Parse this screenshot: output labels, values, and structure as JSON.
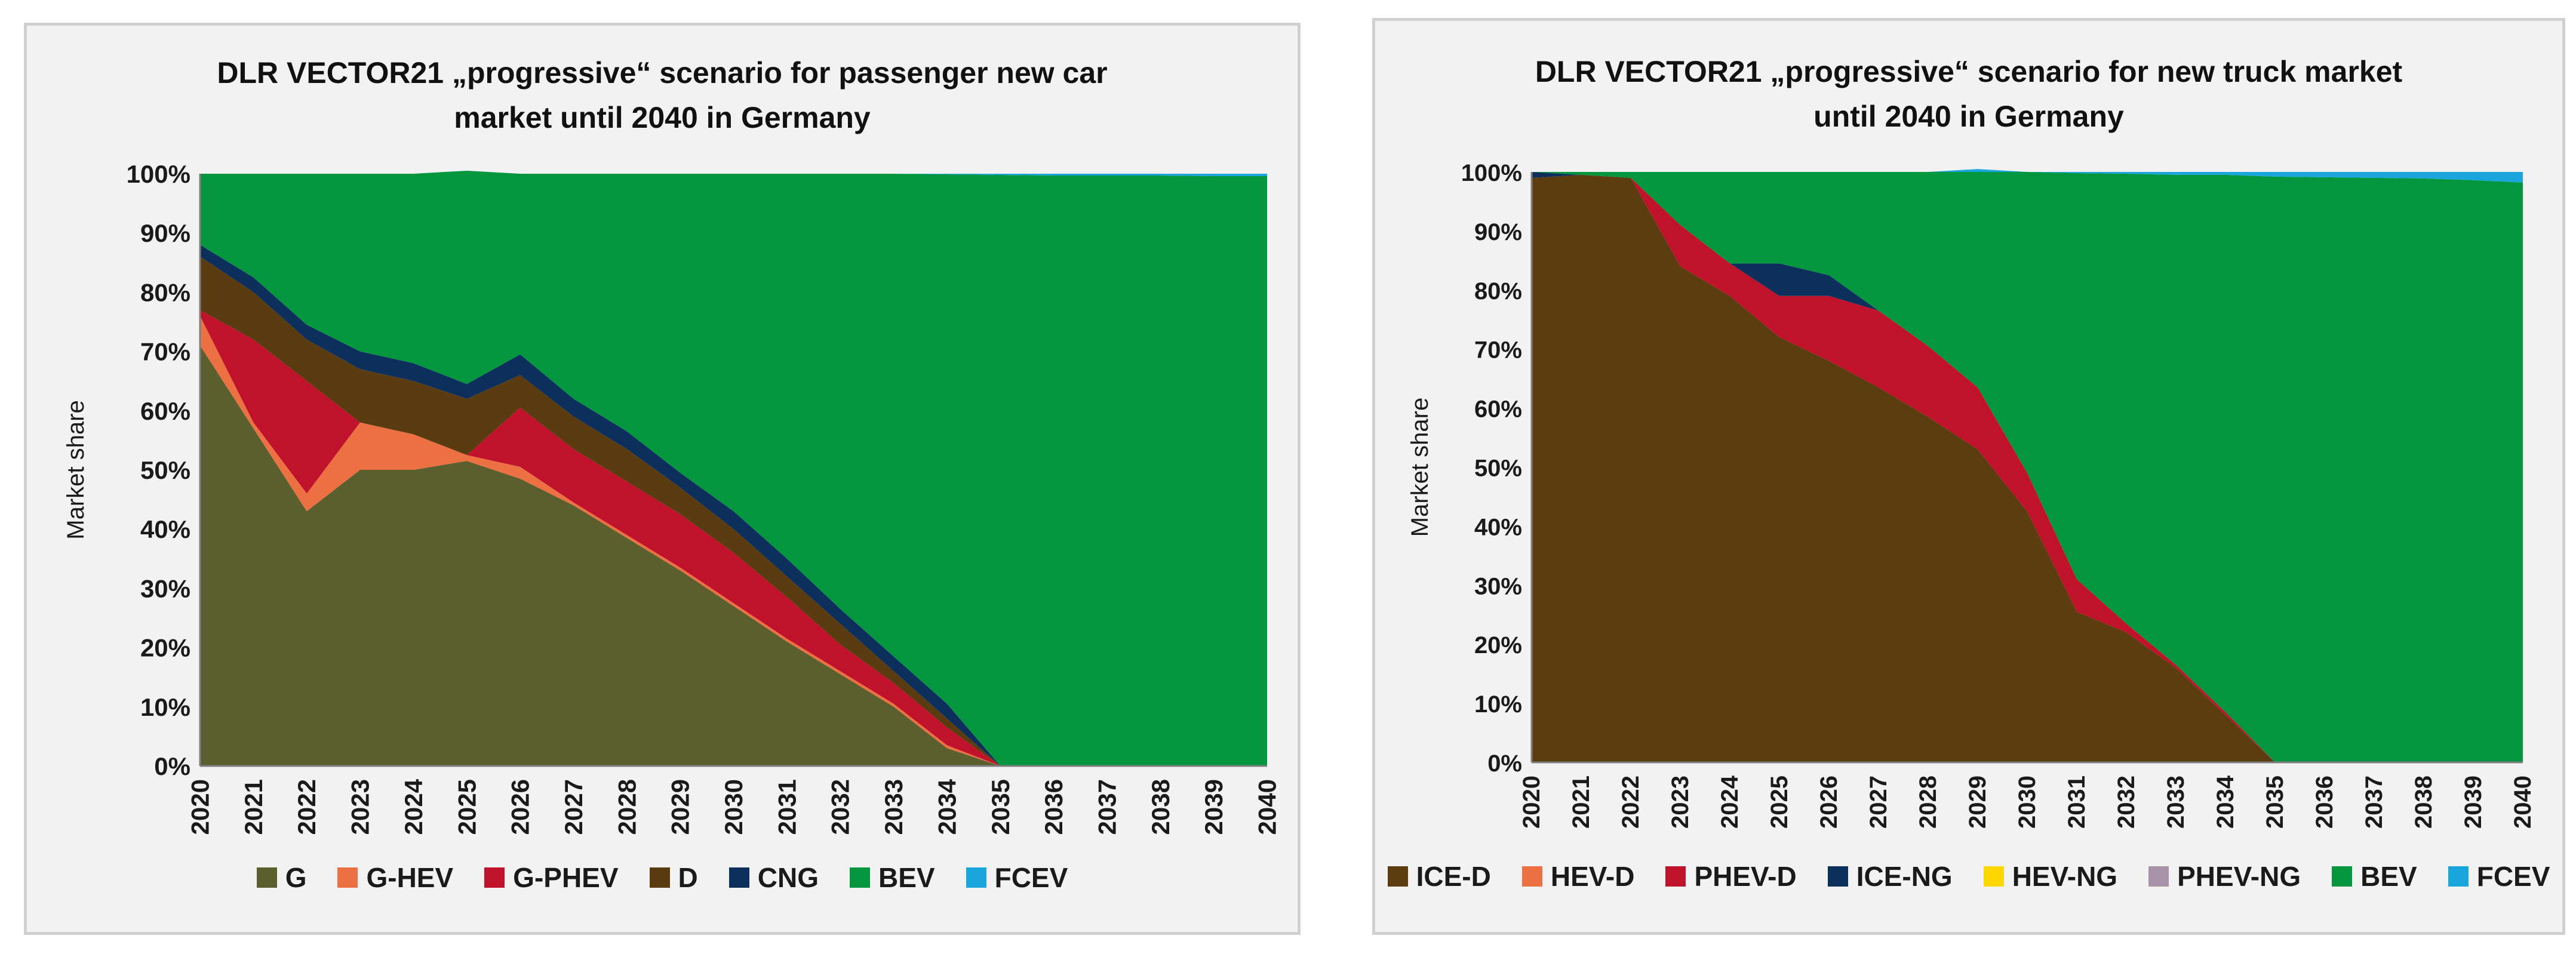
{
  "chart_data": [
    {
      "type": "area",
      "stacked": true,
      "title_lines": [
        "DLR VECTOR21 „progressive“ scenario for passenger new car",
        "market until 2040 in Germany"
      ],
      "xlabel": "",
      "ylabel": "Market share",
      "ylim": [
        0,
        100
      ],
      "y_ticks": [
        "0%",
        "10%",
        "20%",
        "30%",
        "40%",
        "50%",
        "60%",
        "70%",
        "80%",
        "90%",
        "100%"
      ],
      "grid": false,
      "legend_position": "bottom",
      "categories": [
        "2020",
        "2021",
        "2022",
        "2023",
        "2024",
        "2025",
        "2026",
        "2027",
        "2028",
        "2029",
        "2030",
        "2031",
        "2032",
        "2033",
        "2034",
        "2035",
        "2036",
        "2037",
        "2038",
        "2039",
        "2040"
      ],
      "series": [
        {
          "name": "G",
          "color": "#5b5e2d",
          "values": [
            71,
            57,
            43,
            50,
            50,
            51.5,
            48.5,
            44,
            38.5,
            33,
            27,
            21,
            15.5,
            10,
            3,
            0,
            0,
            0,
            0,
            0,
            0
          ]
        },
        {
          "name": "G-HEV",
          "color": "#ed7042",
          "values": [
            5,
            1,
            3,
            8,
            6,
            1,
            2,
            0.5,
            0.5,
            0.5,
            0.5,
            0.5,
            0.5,
            0.5,
            0.5,
            0,
            0,
            0,
            0,
            0,
            0
          ]
        },
        {
          "name": "G-PHEV",
          "color": "#c0122b",
          "values": [
            1,
            14,
            19,
            0,
            0,
            0,
            10,
            9,
            9,
            9,
            8.5,
            7,
            4.5,
            3.5,
            3,
            0,
            0,
            0,
            0,
            0,
            0
          ]
        },
        {
          "name": "D",
          "color": "#5b3c10",
          "values": [
            9,
            8,
            7,
            9,
            9,
            9.5,
            5.5,
            5.5,
            5.5,
            4.5,
            4,
            3.5,
            3.5,
            2,
            1.5,
            0,
            0,
            0,
            0,
            0,
            0
          ]
        },
        {
          "name": "CNG",
          "color": "#0c2f5c",
          "values": [
            2,
            2.5,
            2.5,
            3,
            3,
            2.5,
            3.5,
            3,
            3,
            2.5,
            3,
            3,
            2.5,
            2.5,
            2.5,
            0,
            0,
            0,
            0,
            0,
            0
          ]
        },
        {
          "name": "BEV",
          "color": "#03963f",
          "values": [
            12,
            17.5,
            25.5,
            30,
            32,
            36,
            30.5,
            38,
            43.5,
            50.5,
            57,
            65,
            73.5,
            81.5,
            89.4,
            99.8,
            99.7,
            99.7,
            99.7,
            99.6,
            99.6
          ]
        },
        {
          "name": "FCEV",
          "color": "#1aa5dc",
          "values": [
            0,
            0,
            0,
            0,
            0,
            0,
            0,
            0,
            0,
            0,
            0,
            0,
            0,
            0,
            0.1,
            0.2,
            0.3,
            0.3,
            0.3,
            0.4,
            0.4
          ]
        }
      ]
    },
    {
      "type": "area",
      "stacked": true,
      "title_lines": [
        "DLR VECTOR21 „progressive“ scenario for new truck market",
        "until 2040 in Germany"
      ],
      "xlabel": "",
      "ylabel": "Market share",
      "ylim": [
        0,
        100
      ],
      "y_ticks": [
        "0%",
        "10%",
        "20%",
        "30%",
        "40%",
        "50%",
        "60%",
        "70%",
        "80%",
        "90%",
        "100%"
      ],
      "grid": false,
      "legend_position": "bottom",
      "categories": [
        "2020",
        "2021",
        "2022",
        "2023",
        "2024",
        "2025",
        "2026",
        "2027",
        "2028",
        "2029",
        "2030",
        "2031",
        "2032",
        "2033",
        "2034",
        "2035",
        "2036",
        "2037",
        "2038",
        "2039",
        "2040"
      ],
      "series": [
        {
          "name": "ICE-D",
          "color": "#5c3d10",
          "values": [
            99,
            99.5,
            99,
            84,
            79,
            72,
            68,
            63.5,
            58.5,
            53,
            42.5,
            25.5,
            22,
            16,
            8,
            0,
            0,
            0,
            0,
            0,
            0
          ]
        },
        {
          "name": "HEV-D",
          "color": "#ed7042",
          "values": [
            0,
            0,
            0,
            0,
            0,
            0,
            0,
            0,
            0,
            0,
            0,
            0,
            0,
            0,
            0,
            0,
            0,
            0,
            0,
            0,
            0
          ]
        },
        {
          "name": "PHEV-D",
          "color": "#c0122b",
          "values": [
            0,
            0,
            0,
            7,
            5.5,
            7,
            11,
            13,
            12,
            10.5,
            6.5,
            5.5,
            1.5,
            0.5,
            0.5,
            0,
            0,
            0,
            0,
            0,
            0
          ]
        },
        {
          "name": "ICE-NG",
          "color": "#0c2f5c",
          "values": [
            1,
            0,
            0,
            0,
            0,
            5.5,
            3.5,
            0,
            0,
            0,
            0,
            0,
            0,
            0,
            0,
            0,
            0,
            0,
            0,
            0,
            0
          ]
        },
        {
          "name": "HEV-NG",
          "color": "#ffd700",
          "values": [
            0,
            0,
            0,
            0,
            0,
            0,
            0,
            0,
            0,
            0,
            0,
            0,
            0,
            0,
            0,
            0,
            0,
            0,
            0,
            0,
            0
          ]
        },
        {
          "name": "PHEV-NG",
          "color": "#a893a8",
          "values": [
            0,
            0,
            0,
            0,
            0,
            0,
            0,
            0,
            0,
            0,
            0,
            0,
            0,
            0,
            0,
            0,
            0,
            0,
            0,
            0,
            0
          ]
        },
        {
          "name": "BEV",
          "color": "#03963f",
          "values": [
            0,
            0.5,
            1,
            9,
            15.5,
            15.5,
            17.5,
            23.5,
            29.5,
            36.5,
            51,
            68.8,
            76.2,
            83,
            91,
            99.2,
            99.1,
            99,
            98.9,
            98.6,
            98.2
          ]
        },
        {
          "name": "FCEV",
          "color": "#1aa5dc",
          "values": [
            0,
            0,
            0,
            0,
            0,
            0,
            0,
            0,
            0,
            0.5,
            0,
            0.2,
            0.3,
            0.5,
            0.5,
            0.8,
            0.9,
            1,
            1.1,
            1.4,
            1.8
          ]
        }
      ]
    }
  ]
}
